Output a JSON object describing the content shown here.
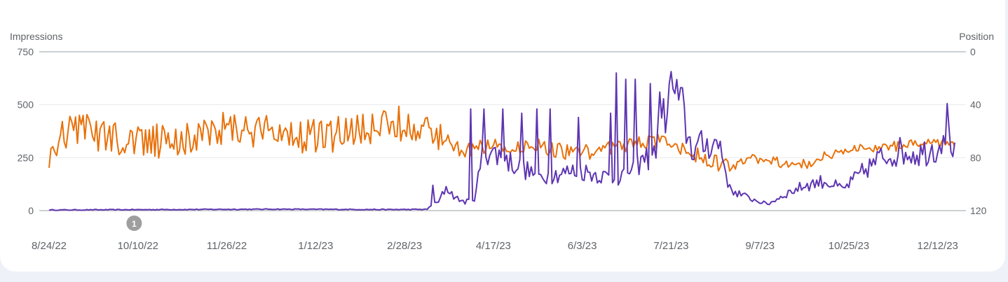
{
  "chart_data": {
    "type": "line",
    "left_axis_label": "Impressions",
    "right_axis_label": "Position",
    "left_ticks": [
      "750",
      "500",
      "250",
      "0"
    ],
    "right_ticks": [
      "0",
      "40",
      "80",
      "120"
    ],
    "left_range": [
      0,
      750
    ],
    "right_range": [
      0,
      120
    ],
    "right_axis_reversed": true,
    "x_tick_labels": [
      "8/24/22",
      "10/10/22",
      "11/26/22",
      "1/12/23",
      "2/28/23",
      "4/17/23",
      "6/3/23",
      "7/21/23",
      "9/7/23",
      "10/25/23",
      "12/12/23"
    ],
    "annotation": {
      "label": "1",
      "x_day": 45
    },
    "n_days": 480,
    "series": [
      {
        "name": "Impressions",
        "axis": "left",
        "color": "#5e35b1",
        "keypoints": [
          [
            0,
            3
          ],
          [
            30,
            4
          ],
          [
            60,
            5
          ],
          [
            120,
            7
          ],
          [
            180,
            5
          ],
          [
            200,
            6
          ],
          [
            202,
            25
          ],
          [
            206,
            40
          ],
          [
            210,
            110
          ],
          [
            215,
            60
          ],
          [
            220,
            40
          ],
          [
            225,
            60
          ],
          [
            230,
            290
          ],
          [
            240,
            250
          ],
          [
            250,
            200
          ],
          [
            260,
            160
          ],
          [
            280,
            190
          ],
          [
            300,
            150
          ],
          [
            320,
            270
          ],
          [
            330,
            600
          ],
          [
            340,
            290
          ],
          [
            350,
            320
          ],
          [
            355,
            310
          ],
          [
            360,
            100
          ],
          [
            370,
            60
          ],
          [
            380,
            30
          ],
          [
            390,
            80
          ],
          [
            400,
            120
          ],
          [
            410,
            140
          ],
          [
            420,
            100
          ],
          [
            430,
            180
          ],
          [
            440,
            250
          ],
          [
            450,
            280
          ],
          [
            460,
            270
          ],
          [
            470,
            300
          ],
          [
            475,
            420
          ],
          [
            480,
            220
          ]
        ],
        "spikes": [
          [
            203,
            120
          ],
          [
            223,
            480
          ],
          [
            230,
            480
          ],
          [
            240,
            480
          ],
          [
            250,
            460
          ],
          [
            258,
            480
          ],
          [
            265,
            480
          ],
          [
            280,
            440
          ],
          [
            297,
            460
          ],
          [
            300,
            650
          ],
          [
            305,
            620
          ],
          [
            310,
            620
          ],
          [
            318,
            600
          ],
          [
            323,
            560
          ],
          [
            335,
            580
          ]
        ]
      },
      {
        "name": "Position",
        "axis": "right",
        "color": "#e8710a",
        "keypoints": [
          [
            0,
            80
          ],
          [
            10,
            58
          ],
          [
            40,
            68
          ],
          [
            60,
            68
          ],
          [
            70,
            65
          ],
          [
            75,
            62
          ],
          [
            100,
            58
          ],
          [
            120,
            62
          ],
          [
            140,
            63
          ],
          [
            160,
            62
          ],
          [
            170,
            60
          ],
          [
            180,
            55
          ],
          [
            190,
            55
          ],
          [
            200,
            58
          ],
          [
            210,
            68
          ],
          [
            220,
            75
          ],
          [
            230,
            72
          ],
          [
            260,
            72
          ],
          [
            280,
            77
          ],
          [
            300,
            72
          ],
          [
            310,
            70
          ],
          [
            320,
            68
          ],
          [
            330,
            70
          ],
          [
            345,
            80
          ],
          [
            360,
            88
          ],
          [
            370,
            82
          ],
          [
            380,
            80
          ],
          [
            390,
            85
          ],
          [
            400,
            85
          ],
          [
            410,
            78
          ],
          [
            420,
            75
          ],
          [
            440,
            72
          ],
          [
            460,
            70
          ],
          [
            480,
            68
          ]
        ]
      }
    ]
  }
}
